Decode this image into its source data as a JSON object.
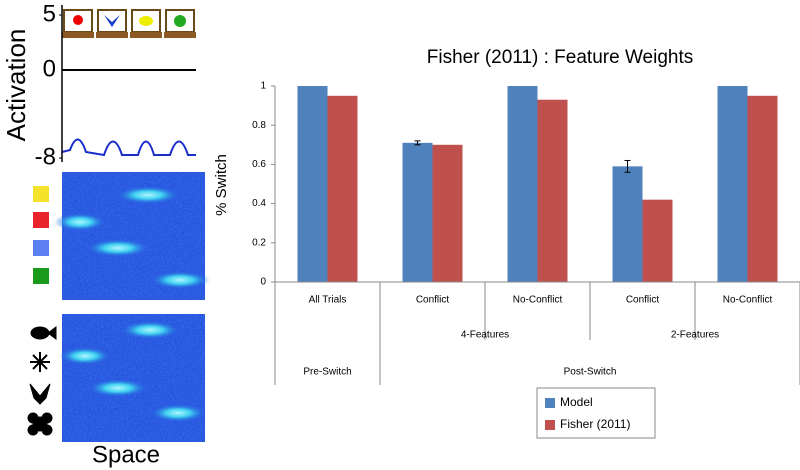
{
  "chart_data": [
    {
      "type": "field",
      "ylabel": "Activation",
      "xlabel": "Space",
      "ylim": [
        -8,
        5
      ],
      "yticks": [
        5,
        0,
        -8
      ]
    },
    {
      "type": "bar",
      "title": "Fisher (2011) : Feature Weights",
      "ylabel": "% Switch",
      "categories": [
        "All Trials",
        "Conflict",
        "No-Conflict",
        "Conflict",
        "No-Conflict"
      ],
      "groups": [
        {
          "label": "4-Features",
          "start": 1,
          "end": 2
        },
        {
          "label": "2-Features",
          "start": 3,
          "end": 4
        }
      ],
      "phases": [
        {
          "label": "Pre-Switch",
          "start": 0,
          "end": 0
        },
        {
          "label": "Post-Switch",
          "start": 1,
          "end": 4
        }
      ],
      "series": [
        {
          "name": "Model",
          "color": "#4f81bd",
          "values": [
            1,
            0.71,
            1,
            0.59,
            1
          ],
          "errors": [
            null,
            0.01,
            null,
            0.03,
            null
          ]
        },
        {
          "name": "Fisher (2011)",
          "color": "#c0504d",
          "values": [
            0.95,
            0.7,
            0.93,
            0.42,
            0.95
          ]
        }
      ],
      "ylim": [
        0,
        1
      ],
      "yticks": [
        0,
        0.2,
        0.4,
        0.6,
        0.8,
        1
      ]
    }
  ]
}
